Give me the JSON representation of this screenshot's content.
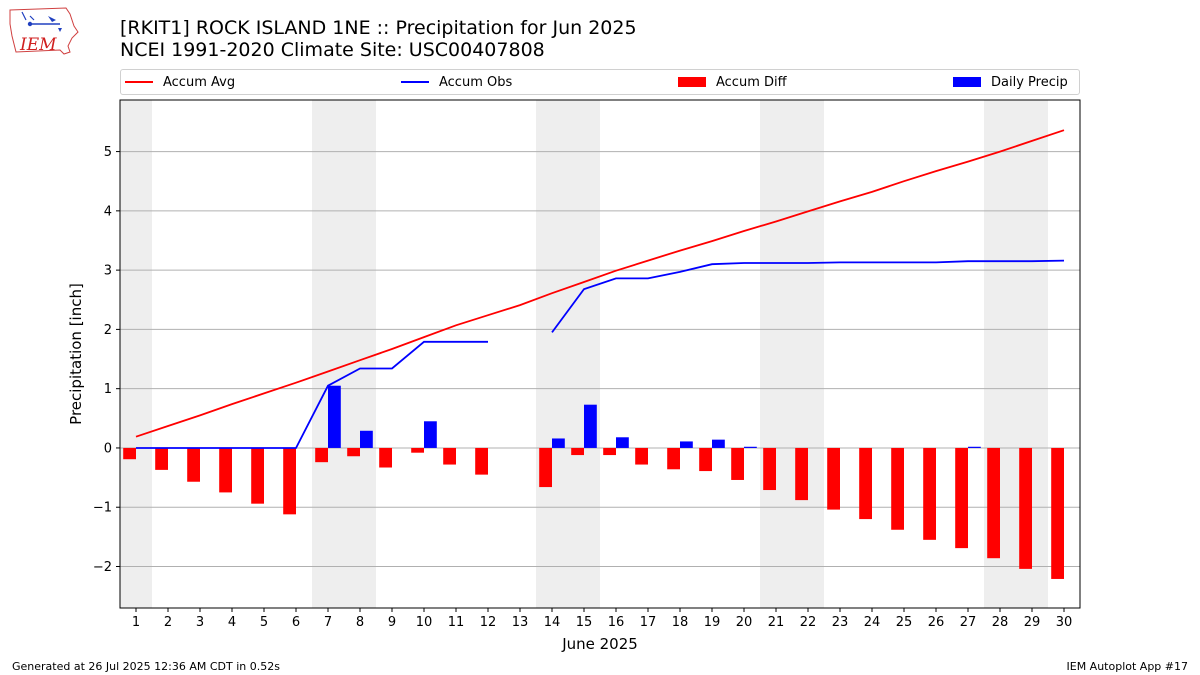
{
  "header": {
    "title_line1": "[RKIT1] ROCK ISLAND 1NE :: Precipitation for Jun 2025",
    "title_line2": "NCEI 1991-2020 Climate Site: USC00407808",
    "logo_text": "IEM"
  },
  "footer": {
    "left": "Generated at 26 Jul 2025 12:36 AM CDT in 0.52s",
    "right": "IEM Autoplot App #17"
  },
  "legend": [
    {
      "label": "Accum Avg",
      "kind": "line",
      "color": "#ff0000"
    },
    {
      "label": "Accum Obs",
      "kind": "line",
      "color": "#0000ff"
    },
    {
      "label": "Accum Diff",
      "kind": "box",
      "color": "#ff0000"
    },
    {
      "label": "Daily Precip",
      "kind": "box",
      "color": "#0000ff"
    }
  ],
  "chart_data": {
    "type": "bar",
    "xlabel": "June 2025",
    "ylabel": "Precipitation [inch]",
    "x": [
      1,
      2,
      3,
      4,
      5,
      6,
      7,
      8,
      9,
      10,
      11,
      12,
      13,
      14,
      15,
      16,
      17,
      18,
      19,
      20,
      21,
      22,
      23,
      24,
      25,
      26,
      27,
      28,
      29,
      30
    ],
    "xlim": [
      0.5,
      30.5
    ],
    "ylim": [
      -2.7,
      5.87
    ],
    "yticks": [
      -2,
      -1,
      0,
      1,
      2,
      3,
      4,
      5
    ],
    "grid": "horizontal",
    "weekend_shading": [
      [
        0.5,
        1.5
      ],
      [
        6.5,
        8.5
      ],
      [
        13.5,
        15.5
      ],
      [
        20.5,
        22.5
      ],
      [
        27.5,
        29.5
      ]
    ],
    "series": [
      {
        "name": "Accum Avg",
        "kind": "line",
        "color": "#ff0000",
        "values": [
          0.19,
          0.37,
          0.55,
          0.74,
          0.92,
          1.1,
          1.29,
          1.48,
          1.67,
          1.87,
          2.07,
          2.24,
          2.41,
          2.61,
          2.8,
          2.99,
          3.16,
          3.33,
          3.49,
          3.66,
          3.82,
          3.99,
          4.16,
          4.32,
          4.5,
          4.67,
          4.83,
          5.0,
          5.18,
          5.36
        ]
      },
      {
        "name": "Accum Obs",
        "kind": "line",
        "color": "#0000ff",
        "values": [
          0.0,
          0.0,
          0.0,
          0.0,
          0.0,
          0.0,
          1.05,
          1.34,
          1.34,
          1.79,
          1.79,
          1.79,
          null,
          1.95,
          2.68,
          2.86,
          2.86,
          2.97,
          3.1,
          3.12,
          3.12,
          3.12,
          3.13,
          3.13,
          3.13,
          3.13,
          3.15,
          3.15,
          3.15,
          3.16
        ]
      },
      {
        "name": "Accum Diff",
        "kind": "bar",
        "color": "#ff0000",
        "values": [
          -0.19,
          -0.37,
          -0.57,
          -0.75,
          -0.94,
          -1.12,
          -0.24,
          -0.14,
          -0.33,
          -0.08,
          -0.28,
          -0.45,
          null,
          -0.66,
          -0.12,
          -0.12,
          -0.28,
          -0.36,
          -0.39,
          -0.54,
          -0.71,
          -0.88,
          -1.04,
          -1.2,
          -1.38,
          -1.55,
          -1.69,
          -1.86,
          -2.04,
          -2.21
        ]
      },
      {
        "name": "Daily Precip",
        "kind": "bar",
        "color": "#0000ff",
        "values": [
          0,
          0,
          0,
          0,
          0,
          0,
          1.05,
          0.29,
          0,
          0.45,
          0,
          0,
          0,
          0.16,
          0.73,
          0.18,
          0,
          0.11,
          0.14,
          0.02,
          0,
          0,
          0,
          0,
          0,
          0,
          0.02,
          0,
          0,
          0
        ]
      }
    ]
  }
}
